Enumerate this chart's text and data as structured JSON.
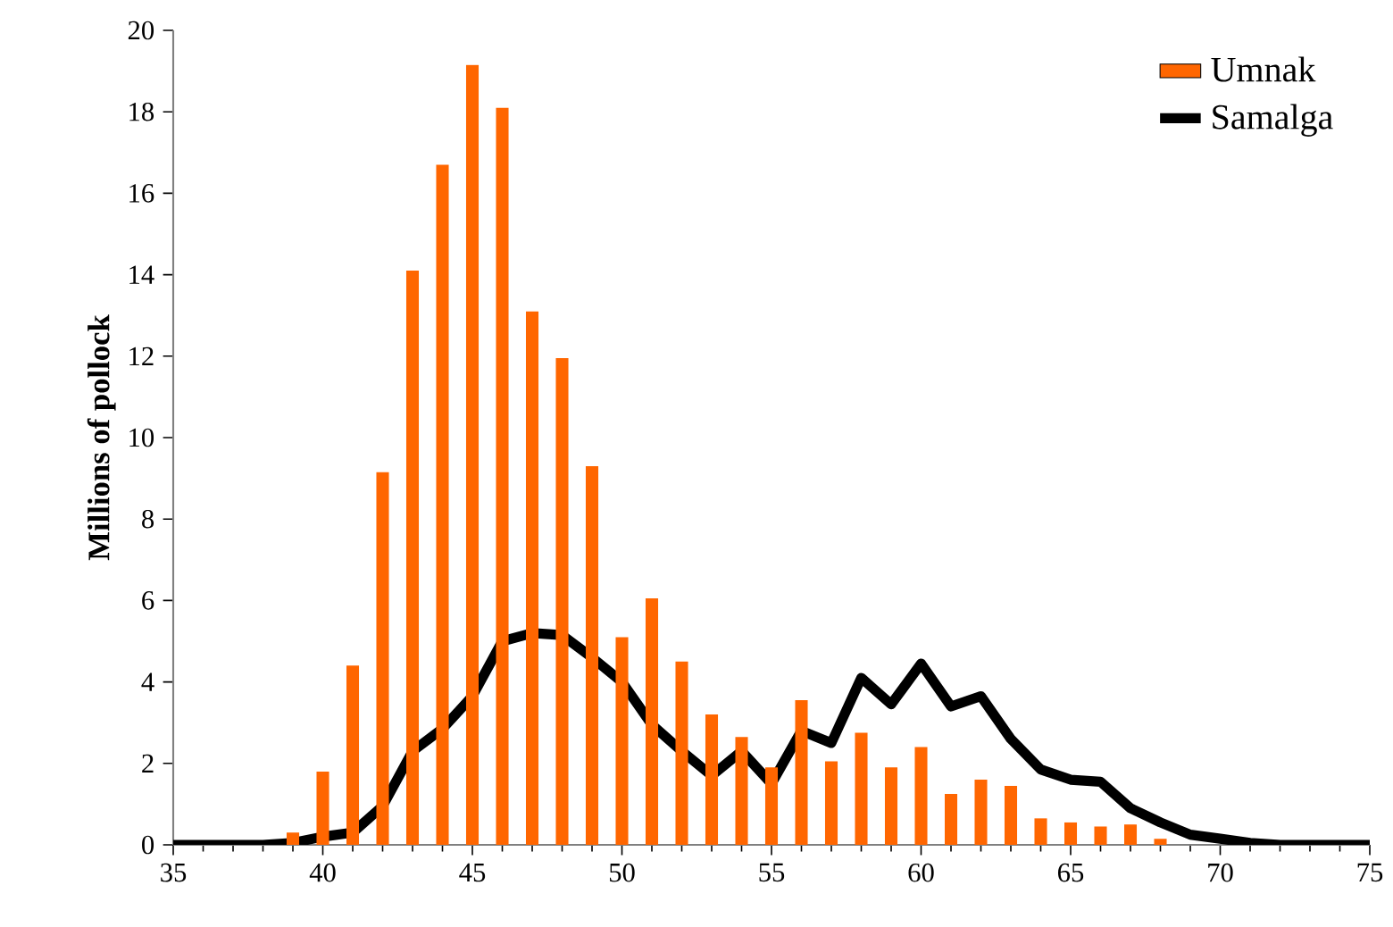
{
  "chart_data": {
    "type": "bar",
    "ylabel": "Millions of pollock",
    "xlim": [
      35,
      75
    ],
    "xticks": [
      35,
      40,
      45,
      50,
      55,
      60,
      65,
      70,
      75
    ],
    "ylim": [
      0,
      20
    ],
    "yticks": [
      0,
      2,
      4,
      6,
      8,
      10,
      12,
      14,
      16,
      18,
      20
    ],
    "grid": false,
    "legend": "top right",
    "marker": "none",
    "series": [
      {
        "name": "Umnak",
        "color": "#ff6600",
        "x": [
          39,
          40,
          41,
          42,
          43,
          44,
          45,
          46,
          47,
          48,
          49,
          50,
          51,
          52,
          53,
          54,
          55,
          56,
          57,
          58,
          59,
          60,
          61,
          62,
          63,
          64,
          65,
          66,
          67,
          68
        ],
        "values": [
          0.3,
          1.8,
          4.4,
          9.15,
          14.1,
          16.7,
          19.15,
          18.1,
          13.1,
          11.95,
          9.3,
          5.1,
          6.05,
          4.5,
          3.2,
          2.65,
          1.9,
          3.55,
          2.05,
          2.75,
          1.9,
          2.4,
          1.25,
          1.6,
          1.45,
          0.65,
          0.55,
          0.45,
          0.5,
          0.15
        ]
      },
      {
        "name": "Samalga",
        "type": "line",
        "line_style": "solid",
        "color": "#000000",
        "x": [
          35,
          36,
          37,
          38,
          39,
          40,
          41,
          42,
          43,
          44,
          45,
          46,
          47,
          48,
          49,
          50,
          51,
          52,
          53,
          54,
          55,
          56,
          57,
          58,
          59,
          60,
          61,
          62,
          63,
          64,
          65,
          66,
          67,
          68,
          69,
          70,
          71,
          72,
          73,
          74,
          75
        ],
        "values": [
          0,
          0,
          0,
          0,
          0.05,
          0.2,
          0.3,
          0.95,
          2.3,
          2.85,
          3.65,
          5.0,
          5.2,
          5.15,
          4.6,
          4.0,
          2.95,
          2.3,
          1.7,
          2.3,
          1.5,
          2.8,
          2.5,
          4.1,
          3.45,
          4.45,
          3.4,
          3.65,
          2.6,
          1.85,
          1.6,
          1.55,
          0.9,
          0.55,
          0.25,
          0.15,
          0.05,
          0,
          0,
          0,
          0
        ]
      }
    ]
  }
}
